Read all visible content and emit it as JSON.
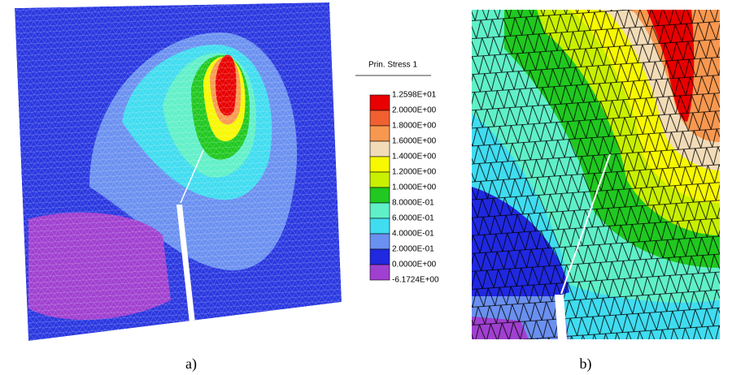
{
  "legend": {
    "title": "Prin. Stress 1",
    "labels": [
      "1.2598E+01",
      "2.0000E+00",
      "1.8000E+00",
      "1.6000E+00",
      "1.4000E+00",
      "1.2000E+00",
      "1.0000E+00",
      "8.0000E-01",
      "6.0000E-01",
      "4.0000E-01",
      "2.0000E-01",
      "0.0000E+00",
      "-6.1724E+00"
    ],
    "colors": [
      "#e80000",
      "#f06030",
      "#f89850",
      "#f2dcb8",
      "#f8f800",
      "#c8f000",
      "#20c820",
      "#60f0c8",
      "#40dcf0",
      "#6a90f0",
      "#2028e0",
      "#a040d0"
    ]
  },
  "captions": [
    "a)",
    "b)"
  ]
}
